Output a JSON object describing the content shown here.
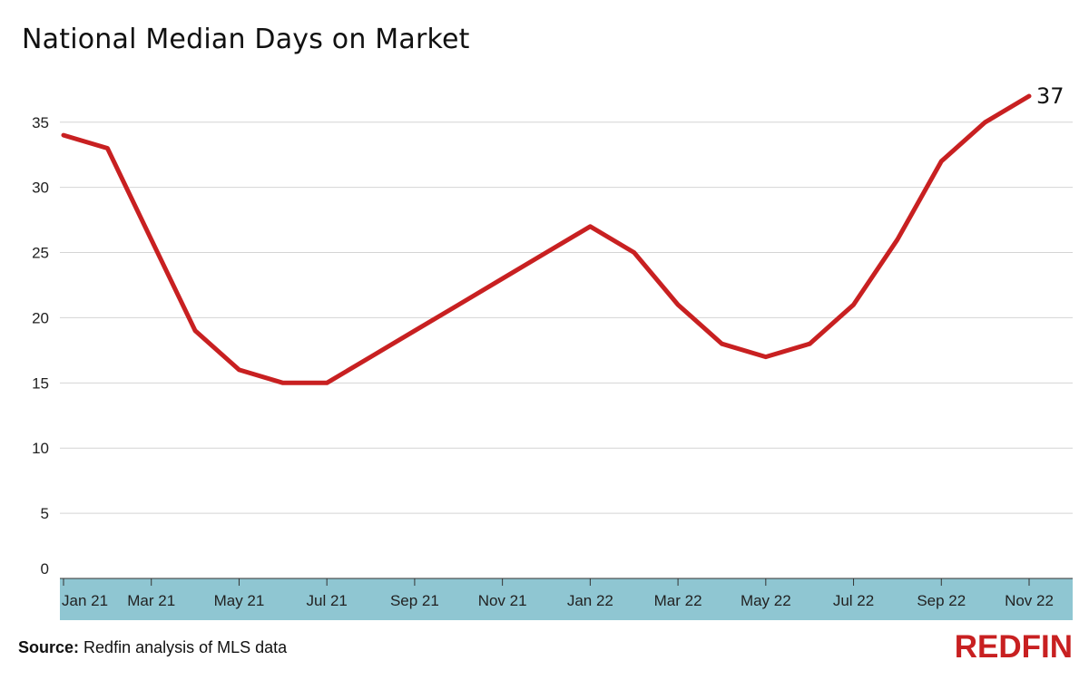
{
  "title": "National Median Days on Market",
  "source": {
    "label": "Source:",
    "text": "Redfin analysis of MLS data"
  },
  "logo": "REDFIN",
  "colors": {
    "line": "#c82021",
    "axis_band": "#8fc6d2",
    "grid": "#d4d4d4",
    "logo": "#c82021"
  },
  "chart_data": {
    "type": "line",
    "x": [
      "Jan 21",
      "Feb 21",
      "Mar 21",
      "Apr 21",
      "May 21",
      "Jun 21",
      "Jul 21",
      "Aug 21",
      "Sep 21",
      "Oct 21",
      "Nov 21",
      "Dec 21",
      "Jan 22",
      "Feb 22",
      "Mar 22",
      "Apr 22",
      "May 22",
      "Jun 22",
      "Jul 22",
      "Aug 22",
      "Sep 22",
      "Oct 22",
      "Nov 22"
    ],
    "series": [
      {
        "values": [
          34,
          33,
          26,
          19,
          16,
          15,
          15,
          17,
          19,
          21,
          23,
          25,
          27,
          25,
          21,
          18,
          17,
          18,
          21,
          26,
          32,
          35,
          37
        ]
      }
    ],
    "x_tick_labels": [
      "Jan 21",
      "Mar 21",
      "May 21",
      "Jul 21",
      "Sep 21",
      "Nov 21",
      "Jan 22",
      "Mar 22",
      "May 22",
      "Jul 22",
      "Sep 22",
      "Nov 22"
    ],
    "y_ticks": [
      0,
      5,
      10,
      15,
      20,
      25,
      30,
      35
    ],
    "ylim": [
      0,
      37
    ],
    "grid": true,
    "end_label": "37"
  }
}
